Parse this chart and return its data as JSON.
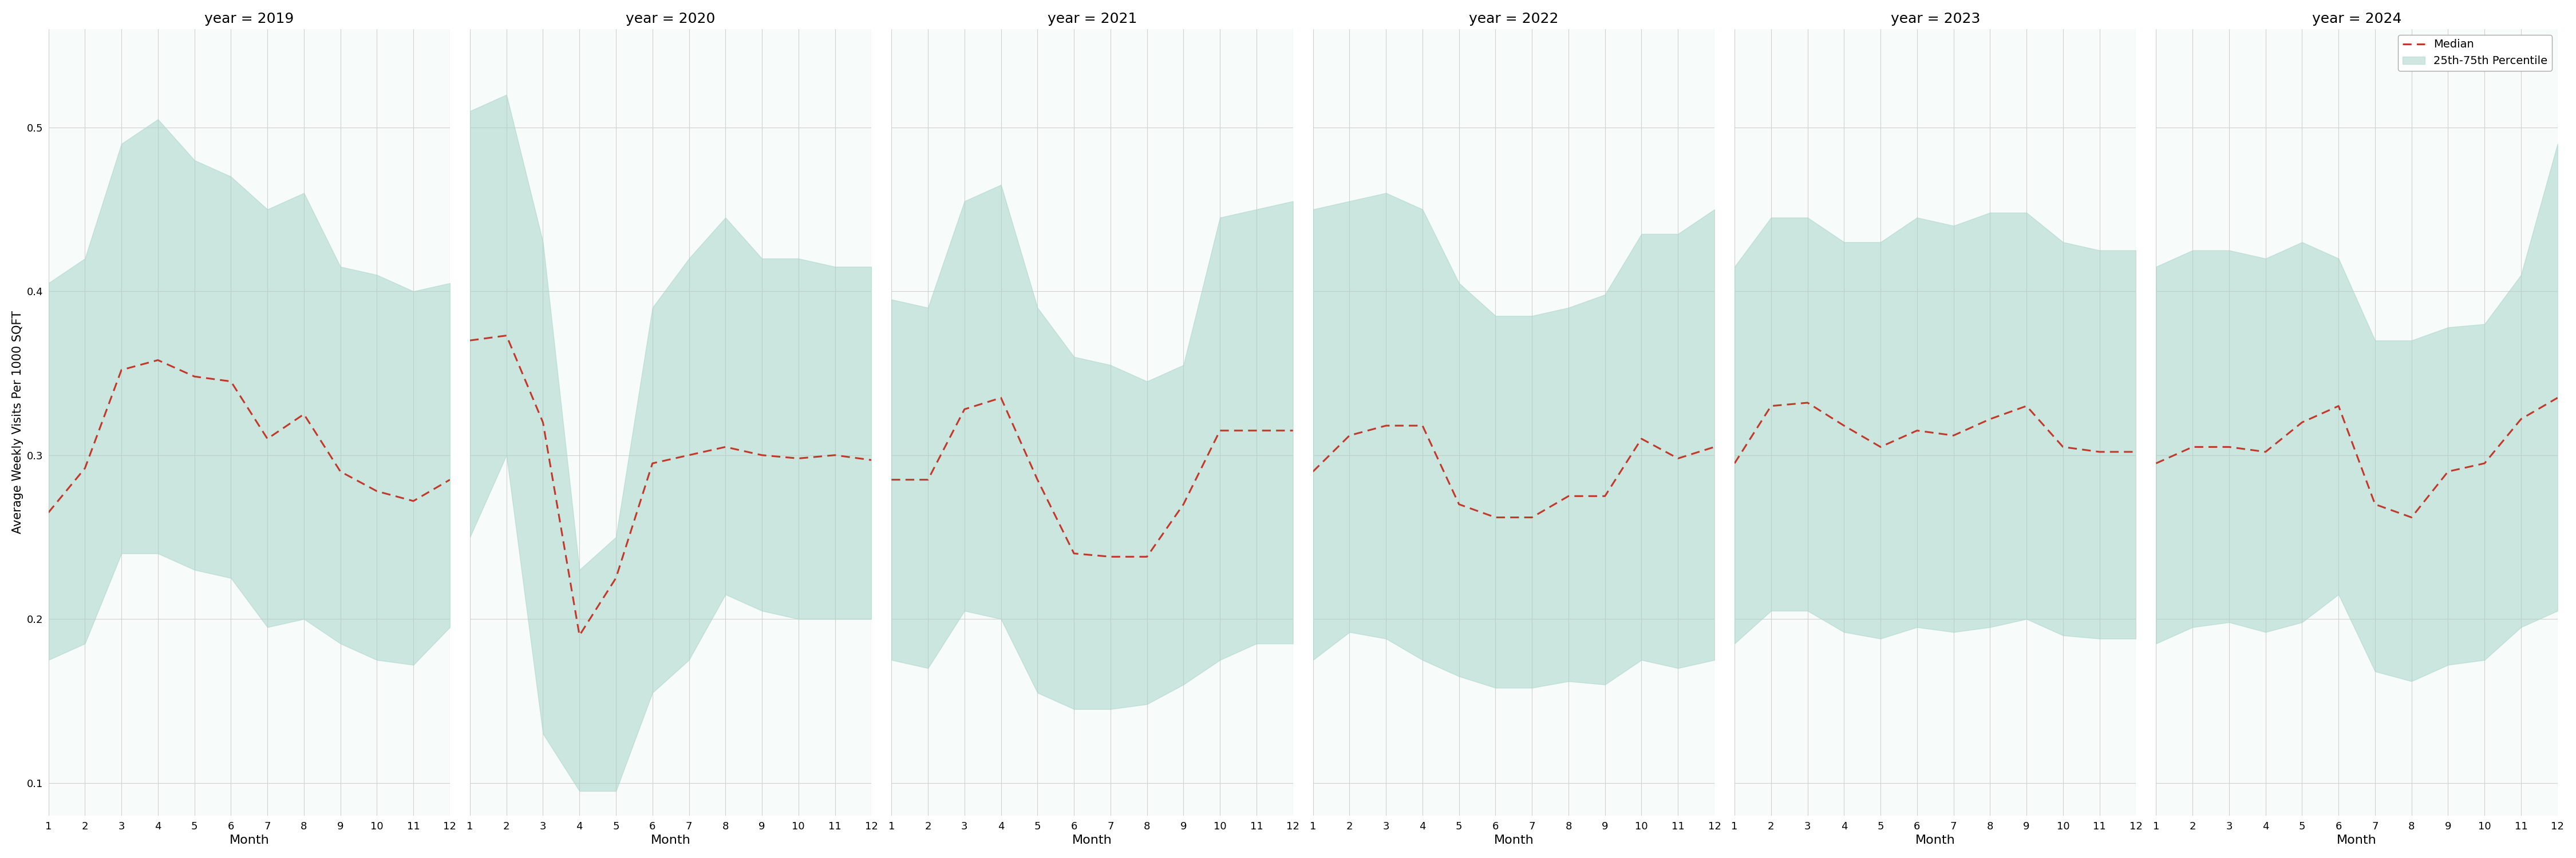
{
  "years": [
    2019,
    2020,
    2021,
    2022,
    2023,
    2024
  ],
  "months": [
    1,
    2,
    3,
    4,
    5,
    6,
    7,
    8,
    9,
    10,
    11,
    12
  ],
  "median": {
    "2019": [
      0.265,
      0.292,
      0.352,
      0.358,
      0.348,
      0.345,
      0.31,
      0.325,
      0.29,
      0.278,
      0.272,
      0.285
    ],
    "2020": [
      0.37,
      0.373,
      0.32,
      0.19,
      0.225,
      0.295,
      0.3,
      0.305,
      0.3,
      0.298,
      0.3,
      0.297
    ],
    "2021": [
      0.285,
      0.285,
      0.328,
      0.335,
      0.285,
      0.24,
      0.238,
      0.238,
      0.27,
      0.315,
      0.315,
      0.315
    ],
    "2022": [
      0.29,
      0.312,
      0.318,
      0.318,
      0.27,
      0.262,
      0.262,
      0.275,
      0.275,
      0.31,
      0.298,
      0.305
    ],
    "2023": [
      0.295,
      0.33,
      0.332,
      0.318,
      0.305,
      0.315,
      0.312,
      0.322,
      0.33,
      0.305,
      0.302,
      0.302
    ],
    "2024": [
      0.295,
      0.305,
      0.305,
      0.302,
      0.32,
      0.33,
      0.27,
      0.262,
      0.29,
      0.295,
      0.322,
      0.335
    ]
  },
  "q25": {
    "2019": [
      0.175,
      0.185,
      0.24,
      0.24,
      0.23,
      0.225,
      0.195,
      0.2,
      0.185,
      0.175,
      0.172,
      0.195
    ],
    "2020": [
      0.25,
      0.3,
      0.13,
      0.095,
      0.095,
      0.155,
      0.175,
      0.215,
      0.205,
      0.2,
      0.2,
      0.2
    ],
    "2021": [
      0.175,
      0.17,
      0.205,
      0.2,
      0.155,
      0.145,
      0.145,
      0.148,
      0.16,
      0.175,
      0.185,
      0.185
    ],
    "2022": [
      0.175,
      0.192,
      0.188,
      0.175,
      0.165,
      0.158,
      0.158,
      0.162,
      0.16,
      0.175,
      0.17,
      0.175
    ],
    "2023": [
      0.185,
      0.205,
      0.205,
      0.192,
      0.188,
      0.195,
      0.192,
      0.195,
      0.2,
      0.19,
      0.188,
      0.188
    ],
    "2024": [
      0.185,
      0.195,
      0.198,
      0.192,
      0.198,
      0.215,
      0.168,
      0.162,
      0.172,
      0.175,
      0.195,
      0.205
    ]
  },
  "q75": {
    "2019": [
      0.405,
      0.42,
      0.49,
      0.505,
      0.48,
      0.47,
      0.45,
      0.46,
      0.415,
      0.41,
      0.4,
      0.405
    ],
    "2020": [
      0.51,
      0.52,
      0.43,
      0.23,
      0.25,
      0.39,
      0.42,
      0.445,
      0.42,
      0.42,
      0.415,
      0.415
    ],
    "2021": [
      0.395,
      0.39,
      0.455,
      0.465,
      0.39,
      0.36,
      0.355,
      0.345,
      0.355,
      0.445,
      0.45,
      0.455
    ],
    "2022": [
      0.45,
      0.455,
      0.46,
      0.45,
      0.405,
      0.385,
      0.385,
      0.39,
      0.398,
      0.435,
      0.435,
      0.45
    ],
    "2023": [
      0.415,
      0.445,
      0.445,
      0.43,
      0.43,
      0.445,
      0.44,
      0.448,
      0.448,
      0.43,
      0.425,
      0.425
    ],
    "2024": [
      0.415,
      0.425,
      0.425,
      0.42,
      0.43,
      0.42,
      0.37,
      0.37,
      0.378,
      0.38,
      0.41,
      0.49
    ]
  },
  "fill_color": "#a8d5c8",
  "line_color": "#c0392b",
  "fill_alpha": 0.55,
  "ylabel": "Average Weekly Visits Per 1000 SQFT",
  "xlabel": "Month",
  "ylim": [
    0.08,
    0.56
  ],
  "yticks": [
    0.1,
    0.2,
    0.3,
    0.4,
    0.5
  ],
  "legend_median_label": "Median",
  "legend_fill_label": "25th-75th Percentile",
  "grid_color": "#d0d0d0",
  "subplot_bg": "#f7fbfa"
}
